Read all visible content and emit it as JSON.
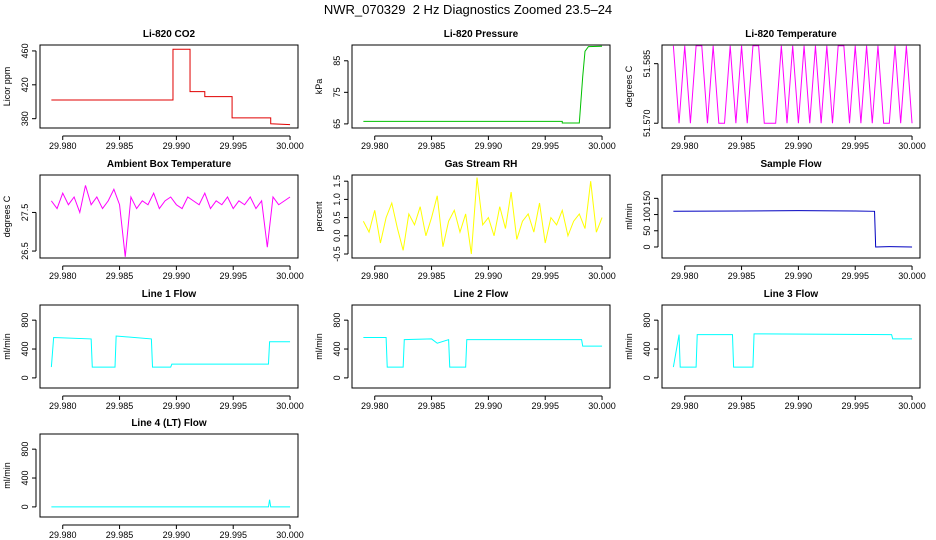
{
  "title": "NWR_070329  2 Hz Diagnostics Zoomed 23.5–24",
  "chart_data": [
    {
      "type": "line",
      "title": "Li-820 CO2",
      "ylabel": "Licor ppm",
      "color": "#e00000",
      "xlim": [
        29.978,
        30.0007
      ],
      "xticks": [
        {
          "value": 29.98,
          "label": "29.980"
        },
        {
          "value": 29.985,
          "label": "29.985"
        },
        {
          "value": 29.99,
          "label": "29.990"
        },
        {
          "value": 29.995,
          "label": "29.995"
        },
        {
          "value": 30.0,
          "label": "30.000"
        }
      ],
      "ylim": [
        369,
        467
      ],
      "yticks": [
        380,
        420,
        460
      ],
      "x": [
        29.979,
        29.9897,
        29.9897,
        29.9912,
        29.9912,
        29.9925,
        29.9925,
        29.9949,
        29.9949,
        29.9983,
        29.9983,
        30.0
      ],
      "values": [
        402,
        402,
        462,
        462,
        412,
        412,
        406,
        406,
        381,
        381,
        374,
        373
      ]
    },
    {
      "type": "line",
      "title": "Li-820 Pressure",
      "ylabel": "kPa",
      "color": "#00c000",
      "xlim": [
        29.978,
        30.0007
      ],
      "xticks": [
        {
          "value": 29.98,
          "label": "29.980"
        },
        {
          "value": 29.985,
          "label": "29.985"
        },
        {
          "value": 29.99,
          "label": "29.990"
        },
        {
          "value": 29.995,
          "label": "29.995"
        },
        {
          "value": 30.0,
          "label": "30.000"
        }
      ],
      "ylim": [
        63.7,
        90
      ],
      "yticks": [
        65,
        75,
        85
      ],
      "x": [
        29.979,
        29.9965,
        29.9965,
        29.998,
        29.9983,
        29.9985,
        29.9988,
        30.0
      ],
      "values": [
        65.8,
        65.8,
        65.3,
        65.3,
        80,
        88,
        89.5,
        89.6
      ]
    },
    {
      "type": "line",
      "title": "Li-820 Temperature",
      "ylabel": "degrees C",
      "color": "#ff00ff",
      "xlim": [
        29.978,
        30.0007
      ],
      "xticks": [
        {
          "value": 29.98,
          "label": "29.980"
        },
        {
          "value": 29.985,
          "label": "29.985"
        },
        {
          "value": 29.99,
          "label": "29.990"
        },
        {
          "value": 29.995,
          "label": "29.995"
        },
        {
          "value": 30.0,
          "label": "30.000"
        }
      ],
      "ylim": [
        51.5688,
        51.5897
      ],
      "yticks": [
        {
          "value": 51.57,
          "label": "51.570"
        },
        {
          "value": 51.585,
          "label": "51.585"
        }
      ],
      "x": [
        29.979,
        29.9795,
        29.98,
        29.9805,
        29.981,
        29.9815,
        29.982,
        29.9825,
        29.983,
        29.9835,
        29.984,
        29.9845,
        29.985,
        29.9855,
        29.986,
        29.9865,
        29.987,
        29.9875,
        29.988,
        29.9885,
        29.989,
        29.9895,
        29.99,
        29.9905,
        29.991,
        29.9915,
        29.992,
        29.9925,
        29.993,
        29.9935,
        29.994,
        29.9945,
        29.995,
        29.9955,
        29.996,
        29.9965,
        29.997,
        29.9975,
        29.998,
        29.9985,
        29.999,
        29.9995,
        30.0
      ],
      "values": [
        51.5895,
        51.57,
        51.5895,
        51.57,
        51.5895,
        51.5895,
        51.57,
        51.5895,
        51.57,
        51.57,
        51.5895,
        51.57,
        51.5895,
        51.57,
        51.5895,
        51.5895,
        51.57,
        51.57,
        51.57,
        51.5895,
        51.57,
        51.5895,
        51.57,
        51.5895,
        51.57,
        51.5895,
        51.57,
        51.5895,
        51.57,
        51.5895,
        51.5895,
        51.57,
        51.5895,
        51.57,
        51.5895,
        51.57,
        51.5895,
        51.57,
        51.57,
        51.5895,
        51.57,
        51.5895,
        51.57
      ]
    },
    {
      "type": "line",
      "title": "Ambient Box Temperature",
      "ylabel": "degrees C",
      "color": "#ff00ff",
      "xlim": [
        29.978,
        30.0007
      ],
      "xticks": [
        {
          "value": 29.98,
          "label": "29.980"
        },
        {
          "value": 29.985,
          "label": "29.985"
        },
        {
          "value": 29.99,
          "label": "29.990"
        },
        {
          "value": 29.995,
          "label": "29.995"
        },
        {
          "value": 30.0,
          "label": "30.000"
        }
      ],
      "ylim": [
        26.32,
        28.47
      ],
      "yticks": [
        26.5,
        27.5
      ],
      "x": [
        29.979,
        29.9795,
        29.98,
        29.9805,
        29.981,
        29.9815,
        29.982,
        29.9825,
        29.983,
        29.9835,
        29.984,
        29.9845,
        29.985,
        29.9855,
        29.986,
        29.9865,
        29.987,
        29.9875,
        29.988,
        29.9885,
        29.989,
        29.9895,
        29.99,
        29.9905,
        29.991,
        29.9915,
        29.992,
        29.9925,
        29.993,
        29.9935,
        29.994,
        29.9945,
        29.995,
        29.9955,
        29.996,
        29.9965,
        29.997,
        29.9975,
        29.998,
        29.9985,
        29.999,
        29.9995,
        30.0
      ],
      "values": [
        27.8,
        27.6,
        28.0,
        27.7,
        27.9,
        27.5,
        28.2,
        27.7,
        27.9,
        27.6,
        27.8,
        28.1,
        27.7,
        26.35,
        27.9,
        27.6,
        27.8,
        27.7,
        28.0,
        27.6,
        27.8,
        27.9,
        27.7,
        27.6,
        27.9,
        27.8,
        27.7,
        28.0,
        27.6,
        27.8,
        27.7,
        27.9,
        27.6,
        27.8,
        27.7,
        27.9,
        27.6,
        27.8,
        26.6,
        27.9,
        27.7,
        27.8,
        27.9
      ]
    },
    {
      "type": "line",
      "title": "Gas Stream RH",
      "ylabel": "percent",
      "color": "#ffff00",
      "xlim": [
        29.978,
        30.0007
      ],
      "xticks": [
        {
          "value": 29.98,
          "label": "29.980"
        },
        {
          "value": 29.985,
          "label": "29.985"
        },
        {
          "value": 29.99,
          "label": "29.990"
        },
        {
          "value": 29.995,
          "label": "29.995"
        },
        {
          "value": 30.0,
          "label": "30.000"
        }
      ],
      "ylim": [
        -0.61,
        1.67
      ],
      "yticks": [
        -0.5,
        {
          "value": 0,
          "label": "0.0"
        },
        0.5,
        {
          "value": 1,
          "label": "1.0"
        },
        1.5
      ],
      "x": [
        29.979,
        29.9795,
        29.98,
        29.9805,
        29.981,
        29.9815,
        29.982,
        29.9825,
        29.983,
        29.9835,
        29.984,
        29.9845,
        29.985,
        29.9855,
        29.986,
        29.9865,
        29.987,
        29.9875,
        29.988,
        29.9885,
        29.989,
        29.9895,
        29.99,
        29.9905,
        29.991,
        29.9915,
        29.992,
        29.9925,
        29.993,
        29.9935,
        29.994,
        29.9945,
        29.995,
        29.9955,
        29.996,
        29.9965,
        29.997,
        29.9975,
        29.998,
        29.9985,
        29.999,
        29.9995,
        30.0
      ],
      "values": [
        0.4,
        0.1,
        0.7,
        -0.2,
        0.5,
        0.9,
        0.2,
        -0.4,
        0.6,
        0.3,
        0.8,
        0.0,
        0.5,
        1.1,
        -0.3,
        0.4,
        0.7,
        0.1,
        0.6,
        -0.5,
        1.6,
        0.3,
        0.5,
        0.0,
        0.8,
        0.2,
        1.2,
        -0.1,
        0.4,
        0.6,
        0.1,
        0.9,
        -0.2,
        0.5,
        0.3,
        0.7,
        0.0,
        0.4,
        0.6,
        0.2,
        1.5,
        0.1,
        0.5
      ]
    },
    {
      "type": "line",
      "title": "Sample Flow",
      "ylabel": "ml/min",
      "color": "#0000c0",
      "xlim": [
        29.978,
        30.0007
      ],
      "xticks": [
        {
          "value": 29.98,
          "label": "29.980"
        },
        {
          "value": 29.985,
          "label": "29.985"
        },
        {
          "value": 29.99,
          "label": "29.990"
        },
        {
          "value": 29.995,
          "label": "29.995"
        },
        {
          "value": 30.0,
          "label": "30.000"
        }
      ],
      "ylim": [
        -34,
        222
      ],
      "yticks": [
        0,
        50,
        100,
        150
      ],
      "x": [
        29.979,
        29.985,
        29.99,
        29.995,
        29.9967,
        29.9968,
        29.998,
        30.0
      ],
      "values": [
        110,
        111,
        112,
        111,
        110,
        0,
        1,
        0
      ]
    },
    {
      "type": "line",
      "title": "Line 1 Flow",
      "ylabel": "ml/min",
      "color": "#00ffff",
      "xlim": [
        29.978,
        30.0007
      ],
      "xticks": [
        {
          "value": 29.98,
          "label": "29.980"
        },
        {
          "value": 29.985,
          "label": "29.985"
        },
        {
          "value": 29.99,
          "label": "29.990"
        },
        {
          "value": 29.995,
          "label": "29.995"
        },
        {
          "value": 30.0,
          "label": "30.000"
        }
      ],
      "ylim": [
        -140,
        1010
      ],
      "yticks": [
        0,
        400,
        800
      ],
      "x": [
        29.979,
        29.9792,
        29.9825,
        29.9826,
        29.9846,
        29.9847,
        29.9878,
        29.9879,
        29.9895,
        29.9896,
        29.9981,
        29.9982,
        30.0
      ],
      "values": [
        150,
        560,
        540,
        150,
        150,
        580,
        540,
        150,
        150,
        190,
        190,
        500,
        500
      ]
    },
    {
      "type": "line",
      "title": "Line 2 Flow",
      "ylabel": "ml/min",
      "color": "#00ffff",
      "xlim": [
        29.978,
        30.0007
      ],
      "xticks": [
        {
          "value": 29.98,
          "label": "29.980"
        },
        {
          "value": 29.985,
          "label": "29.985"
        },
        {
          "value": 29.99,
          "label": "29.990"
        },
        {
          "value": 29.995,
          "label": "29.995"
        },
        {
          "value": 30.0,
          "label": "30.000"
        }
      ],
      "ylim": [
        -140,
        1010
      ],
      "yticks": [
        0,
        400,
        800
      ],
      "x": [
        29.979,
        29.981,
        29.9811,
        29.9825,
        29.9826,
        29.985,
        29.9855,
        29.9865,
        29.9866,
        29.988,
        29.9881,
        29.9982,
        29.9983,
        30.0
      ],
      "values": [
        560,
        560,
        150,
        150,
        530,
        540,
        480,
        530,
        150,
        150,
        530,
        530,
        440,
        440
      ]
    },
    {
      "type": "line",
      "title": "Line 3 Flow",
      "ylabel": "ml/min",
      "color": "#00ffff",
      "xlim": [
        29.978,
        30.0007
      ],
      "xticks": [
        {
          "value": 29.98,
          "label": "29.980"
        },
        {
          "value": 29.985,
          "label": "29.985"
        },
        {
          "value": 29.99,
          "label": "29.990"
        },
        {
          "value": 29.995,
          "label": "29.995"
        },
        {
          "value": 30.0,
          "label": "30.000"
        }
      ],
      "ylim": [
        -140,
        1010
      ],
      "yticks": [
        0,
        400,
        800
      ],
      "x": [
        29.979,
        29.9795,
        29.9796,
        29.981,
        29.9811,
        29.9842,
        29.9843,
        29.986,
        29.9861,
        29.9982,
        29.9983,
        30.0
      ],
      "values": [
        150,
        600,
        150,
        150,
        600,
        600,
        150,
        150,
        610,
        600,
        540,
        540
      ]
    },
    {
      "type": "line",
      "title": "Line 4 (LT) Flow",
      "ylabel": "ml/min",
      "color": "#00ffff",
      "xlim": [
        29.978,
        30.0007
      ],
      "xticks": [
        {
          "value": 29.98,
          "label": "29.980"
        },
        {
          "value": 29.985,
          "label": "29.985"
        },
        {
          "value": 29.99,
          "label": "29.990"
        },
        {
          "value": 29.995,
          "label": "29.995"
        },
        {
          "value": 30.0,
          "label": "30.000"
        }
      ],
      "ylim": [
        -140,
        1010
      ],
      "yticks": [
        0,
        400,
        800
      ],
      "x": [
        29.979,
        29.9981,
        29.9982,
        29.9983,
        30.0
      ],
      "values": [
        0,
        0,
        100,
        0,
        0
      ]
    }
  ]
}
